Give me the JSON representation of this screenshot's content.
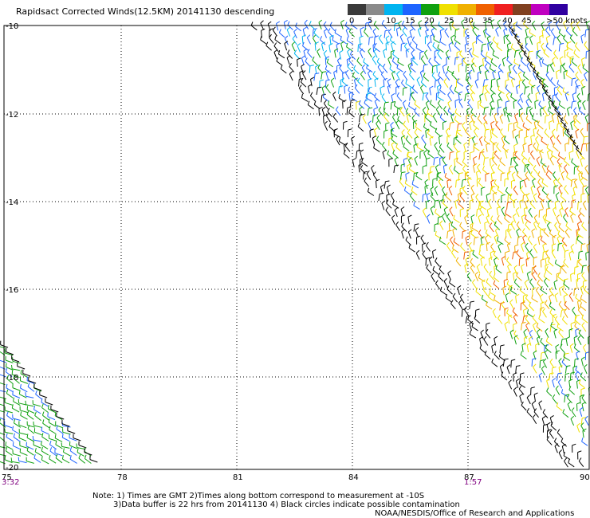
{
  "title": "Rapidsact Corrected Winds(12.5KM) 20141130 descending",
  "colorbar": {
    "labels": [
      "0",
      "5",
      "10",
      "15",
      "20",
      "25",
      "30",
      "35",
      "40",
      "45",
      ">50 knots"
    ],
    "colors": [
      "#3a3a3a",
      "#8a8a8a",
      "#00b4f0",
      "#1e64ff",
      "#10a010",
      "#f0e000",
      "#f0b000",
      "#f06000",
      "#f02020",
      "#804020",
      "#c000c0",
      "#3000a0"
    ]
  },
  "map": {
    "lat_labels": [
      "-10",
      "-12",
      "-14",
      "-16",
      "-18",
      "-20"
    ],
    "lon_labels": [
      "75",
      "78",
      "81",
      "84",
      "87",
      "90"
    ],
    "time_labels": [
      {
        "text": "3:32",
        "color": "#800080"
      },
      {
        "text": "1:57",
        "color": "#800080"
      }
    ]
  },
  "notes": {
    "line1": "Note: 1) Times are GMT 2)Times along bottom correspond to measurement at -10S",
    "line2": "3)Data buffer is 22 hrs from 20141130 4) Black circles indicate possible contamination",
    "line3": "NOAA/NESDIS/Office of Research and Applications"
  }
}
